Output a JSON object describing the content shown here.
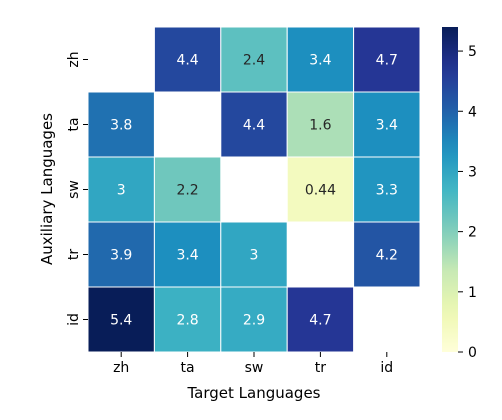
{
  "chart_data": {
    "type": "heatmap",
    "title": "",
    "xlabel": "Target Languages",
    "ylabel": "Auxiliary Languages",
    "x_categories": [
      "zh",
      "ta",
      "sw",
      "tr",
      "id"
    ],
    "y_categories": [
      "zh",
      "ta",
      "sw",
      "tr",
      "id"
    ],
    "values": [
      [
        null,
        4.4,
        2.4,
        3.4,
        4.7
      ],
      [
        3.8,
        null,
        4.4,
        1.6,
        3.4
      ],
      [
        3.0,
        2.2,
        null,
        0.44,
        3.3
      ],
      [
        3.9,
        3.4,
        3.0,
        null,
        4.2
      ],
      [
        5.4,
        2.8,
        2.9,
        4.7,
        null
      ]
    ],
    "cell_labels": [
      [
        "",
        "4.4",
        "2.4",
        "3.4",
        "4.7"
      ],
      [
        "3.8",
        "",
        "4.4",
        "1.6",
        "3.4"
      ],
      [
        "3",
        "2.2",
        "",
        "0.44",
        "3.3"
      ],
      [
        "3.9",
        "3.4",
        "3",
        "",
        "4.2"
      ],
      [
        "5.4",
        "2.8",
        "2.9",
        "4.7",
        ""
      ]
    ],
    "colormap": "YlGnBu",
    "vmin": 0,
    "vmax": 5.4,
    "colorbar_ticks": [
      0,
      1,
      2,
      3,
      4,
      5
    ],
    "colorbar_tick_labels": [
      "0",
      "1",
      "2",
      "3",
      "4",
      "5"
    ],
    "grid": false,
    "legend": "colorbar-right"
  }
}
